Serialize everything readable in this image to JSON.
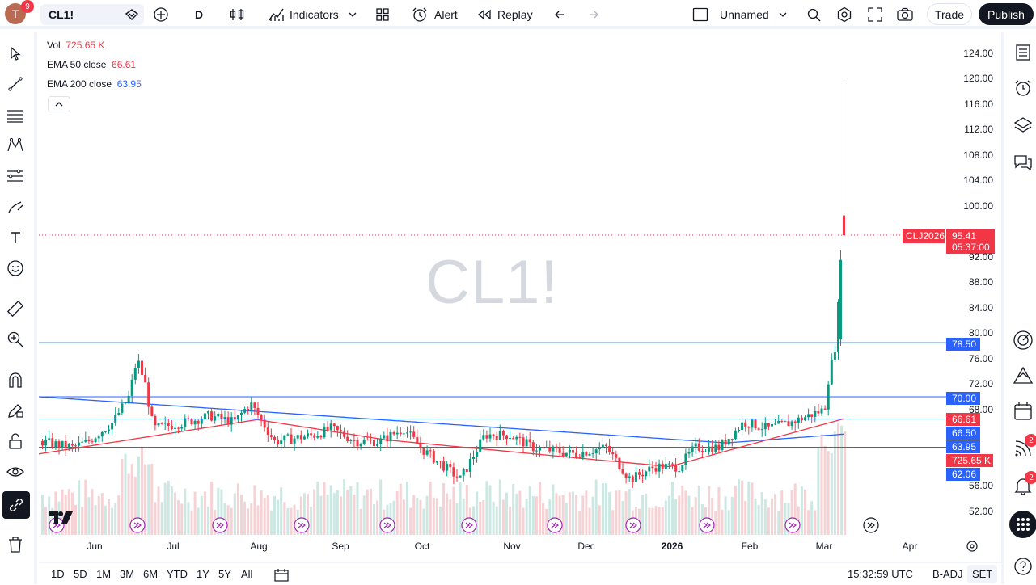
{
  "header": {
    "avatar_letter": "T",
    "avatar_badge": "9",
    "symbol": "CL1!",
    "interval": "D",
    "indicators_label": "Indicators",
    "alert_label": "Alert",
    "replay_label": "Replay",
    "layout_name": "Unnamed",
    "trade_label": "Trade",
    "publish_label": "Publish"
  },
  "legend": {
    "vol_label": "Vol",
    "vol_value": "725.65 K",
    "ema50_label": "EMA 50 close",
    "ema50_value": "66.61",
    "ema200_label": "EMA 200 close",
    "ema200_value": "63.95"
  },
  "watermark": "CL1!",
  "price_axis": {
    "ticks": [
      "124.00",
      "120.00",
      "116.00",
      "112.00",
      "108.00",
      "104.00",
      "100.00",
      "92.00",
      "88.00",
      "84.00",
      "80.00",
      "76.00",
      "72.00",
      "68.00",
      "56.00",
      "52.00"
    ],
    "last_price": "95.41",
    "countdown": "05:37:00",
    "contract": "CLJ2026",
    "levels": [
      "78.50",
      "70.00",
      "66.61",
      "66.50",
      "63.95",
      "725.65 K",
      "62.06"
    ]
  },
  "time_axis": [
    "Jun",
    "Jul",
    "Aug",
    "Sep",
    "Oct",
    "Nov",
    "Dec",
    "2026",
    "Feb",
    "Mar",
    "Apr"
  ],
  "bottom": {
    "ranges": [
      "1D",
      "5D",
      "1M",
      "3M",
      "6M",
      "YTD",
      "1Y",
      "5Y",
      "All"
    ],
    "clock": "15:32:59 UTC",
    "adj": "B-ADJ",
    "session": "SET"
  },
  "right_badges": [
    "2",
    "2"
  ],
  "colors": {
    "up": "#089981",
    "down": "#f23645",
    "ema50": "#f23645",
    "ema200": "#2962ff",
    "hline": "#2962ff",
    "vol": "#ccd0dc"
  },
  "chart_data": {
    "type": "candlestick",
    "series": [
      {
        "name": "Vol",
        "value": "725.65 K"
      },
      {
        "name": "EMA 50 close",
        "value": 66.61
      },
      {
        "name": "EMA 200 close",
        "value": 63.95
      }
    ],
    "horizontal_levels": [
      78.5,
      70.0,
      66.5,
      62.06
    ],
    "last_price": 95.41,
    "spike_high": 119.5,
    "ylim": [
      50,
      126
    ]
  }
}
